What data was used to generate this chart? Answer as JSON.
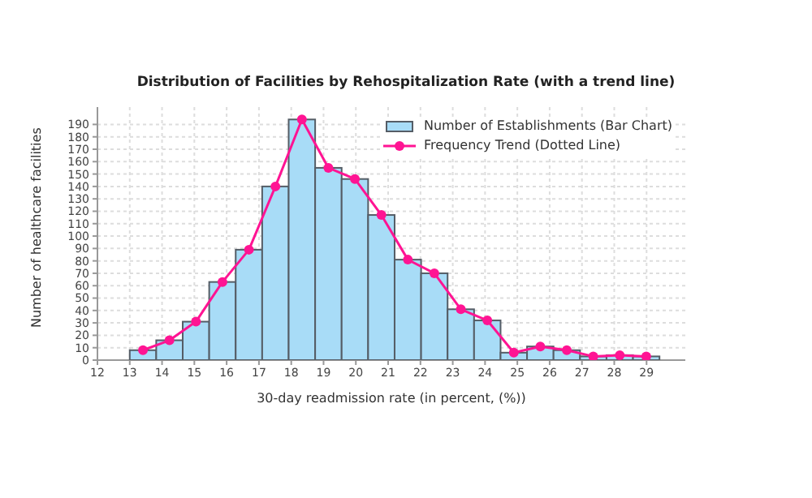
{
  "chart_data": {
    "type": "histogram",
    "title": "Distribution of Facilities by Rehospitalization Rate (with a trend line)",
    "xlabel": "30-day readmission rate (in percent, (%))",
    "ylabel": "Number of healthcare facilities",
    "bins": [
      13,
      13.82,
      14.64,
      15.46,
      16.28,
      17.1,
      17.92,
      18.74,
      19.56,
      20.38,
      21.2,
      22.02,
      22.84,
      23.66,
      24.48,
      25.3,
      26.12,
      26.94,
      27.76,
      28.58,
      29.4
    ],
    "series": [
      {
        "name": "Number of Establishments (Bar Chart)",
        "color": "#a8dcf7",
        "values": [
          8,
          16,
          31,
          63,
          89,
          140,
          194,
          155,
          146,
          117,
          81,
          70,
          41,
          32,
          6,
          11,
          8,
          3,
          4,
          3
        ]
      },
      {
        "type": "line",
        "name": "Frequency Trend (Dotted Line)",
        "color": "#ff1493",
        "x": [
          13.41,
          14.23,
          15.05,
          15.87,
          16.69,
          17.51,
          18.33,
          19.15,
          19.97,
          20.79,
          21.61,
          22.43,
          23.25,
          24.07,
          24.89,
          25.71,
          26.53,
          27.35,
          28.17,
          28.99
        ],
        "values": [
          8,
          16,
          31,
          63,
          89,
          140,
          194,
          155,
          146,
          117,
          81,
          70,
          41,
          32,
          6,
          11,
          8,
          3,
          4,
          3
        ]
      }
    ],
    "xlim": [
      12,
      30.2
    ],
    "xticks": [
      12,
      13,
      14,
      15,
      16,
      17,
      18,
      19,
      20,
      21,
      22,
      23,
      24,
      25,
      26,
      27,
      28,
      29
    ],
    "ylim": [
      0,
      204
    ],
    "yticks": [
      0,
      10,
      20,
      30,
      40,
      50,
      60,
      70,
      80,
      90,
      100,
      110,
      120,
      130,
      140,
      150,
      160,
      170,
      180,
      190
    ],
    "grid": true,
    "legend": "top right",
    "marker": "circle"
  }
}
